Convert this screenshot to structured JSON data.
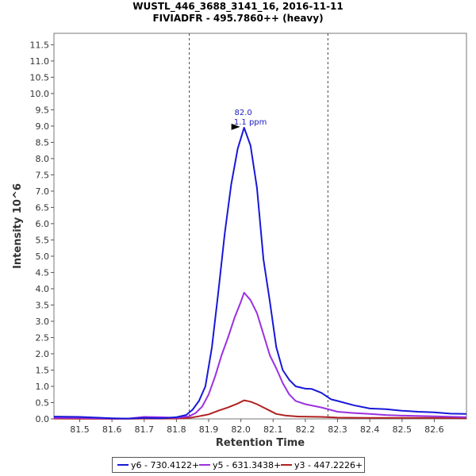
{
  "title": "WUSTL_446_3688_3141_16, 2016-11-11",
  "subtitle": "FIVIADFR - 495.7860++ (heavy)",
  "chart_data": {
    "type": "line",
    "xlabel": "Retention Time",
    "ylabel": "Intensity 10^6",
    "xlim": [
      81.42,
      82.7
    ],
    "ylim": [
      0,
      11.85
    ],
    "x_ticks": [
      "81.5",
      "81.6",
      "81.7",
      "81.8",
      "81.9",
      "82.0",
      "82.1",
      "82.2",
      "82.3",
      "82.4",
      "82.5",
      "82.6"
    ],
    "y_ticks": [
      "0.0",
      "0.5",
      "1.0",
      "1.5",
      "2.0",
      "2.5",
      "3.0",
      "3.5",
      "4.0",
      "4.5",
      "5.0",
      "5.5",
      "6.0",
      "6.5",
      "7.0",
      "7.5",
      "8.0",
      "8.5",
      "9.0",
      "9.5",
      "10.0",
      "10.5",
      "11.0",
      "11.5"
    ],
    "boundaries": [
      81.84,
      82.27
    ],
    "peak_annotation": {
      "x": 82.0,
      "y": 8.95,
      "label_rt": "82.0",
      "label_ppm": "1.1 ppm"
    },
    "legend_position": "bottom",
    "series": [
      {
        "name": "y6 - 730.4122+",
        "color": "#1818d8",
        "points": [
          [
            81.42,
            0.07
          ],
          [
            81.5,
            0.06
          ],
          [
            81.55,
            0.04
          ],
          [
            81.6,
            0.02
          ],
          [
            81.65,
            0.01
          ],
          [
            81.7,
            0.03
          ],
          [
            81.75,
            0.02
          ],
          [
            81.8,
            0.05
          ],
          [
            81.83,
            0.12
          ],
          [
            81.85,
            0.28
          ],
          [
            81.87,
            0.55
          ],
          [
            81.89,
            1.0
          ],
          [
            81.91,
            2.2
          ],
          [
            81.93,
            3.9
          ],
          [
            81.95,
            5.7
          ],
          [
            81.97,
            7.2
          ],
          [
            81.99,
            8.3
          ],
          [
            82.01,
            8.95
          ],
          [
            82.03,
            8.4
          ],
          [
            82.05,
            7.1
          ],
          [
            82.07,
            4.9
          ],
          [
            82.09,
            3.6
          ],
          [
            82.11,
            2.2
          ],
          [
            82.13,
            1.5
          ],
          [
            82.15,
            1.2
          ],
          [
            82.17,
            1.0
          ],
          [
            82.2,
            0.93
          ],
          [
            82.22,
            0.92
          ],
          [
            82.25,
            0.8
          ],
          [
            82.28,
            0.6
          ],
          [
            82.3,
            0.55
          ],
          [
            82.35,
            0.42
          ],
          [
            82.4,
            0.32
          ],
          [
            82.45,
            0.3
          ],
          [
            82.5,
            0.25
          ],
          [
            82.55,
            0.22
          ],
          [
            82.6,
            0.2
          ],
          [
            82.65,
            0.16
          ],
          [
            82.7,
            0.15
          ]
        ]
      },
      {
        "name": "y5 - 631.3438+",
        "color": "#9b30e0",
        "points": [
          [
            81.42,
            0.03
          ],
          [
            81.5,
            0.03
          ],
          [
            81.6,
            0.01
          ],
          [
            81.65,
            0.01
          ],
          [
            81.7,
            0.06
          ],
          [
            81.75,
            0.05
          ],
          [
            81.8,
            0.03
          ],
          [
            81.84,
            0.08
          ],
          [
            81.86,
            0.18
          ],
          [
            81.88,
            0.38
          ],
          [
            81.9,
            0.75
          ],
          [
            81.92,
            1.3
          ],
          [
            81.94,
            1.95
          ],
          [
            81.96,
            2.5
          ],
          [
            81.98,
            3.1
          ],
          [
            82.0,
            3.6
          ],
          [
            82.01,
            3.88
          ],
          [
            82.03,
            3.65
          ],
          [
            82.05,
            3.25
          ],
          [
            82.07,
            2.6
          ],
          [
            82.09,
            1.95
          ],
          [
            82.11,
            1.55
          ],
          [
            82.13,
            1.1
          ],
          [
            82.15,
            0.75
          ],
          [
            82.17,
            0.55
          ],
          [
            82.2,
            0.45
          ],
          [
            82.25,
            0.35
          ],
          [
            82.3,
            0.22
          ],
          [
            82.35,
            0.18
          ],
          [
            82.4,
            0.15
          ],
          [
            82.45,
            0.12
          ],
          [
            82.5,
            0.1
          ],
          [
            82.6,
            0.08
          ],
          [
            82.7,
            0.05
          ]
        ]
      },
      {
        "name": "y3 - 447.2226+",
        "color": "#b02020",
        "points": [
          [
            81.42,
            0.01
          ],
          [
            81.6,
            0.0
          ],
          [
            81.7,
            0.01
          ],
          [
            81.8,
            0.01
          ],
          [
            81.84,
            0.03
          ],
          [
            81.87,
            0.08
          ],
          [
            81.9,
            0.14
          ],
          [
            81.93,
            0.25
          ],
          [
            81.96,
            0.35
          ],
          [
            81.99,
            0.47
          ],
          [
            82.01,
            0.57
          ],
          [
            82.03,
            0.53
          ],
          [
            82.05,
            0.45
          ],
          [
            82.07,
            0.35
          ],
          [
            82.09,
            0.25
          ],
          [
            82.11,
            0.15
          ],
          [
            82.14,
            0.1
          ],
          [
            82.18,
            0.07
          ],
          [
            82.25,
            0.06
          ],
          [
            82.3,
            0.04
          ],
          [
            82.4,
            0.03
          ],
          [
            82.5,
            0.03
          ],
          [
            82.6,
            0.03
          ],
          [
            82.7,
            0.02
          ]
        ]
      }
    ]
  }
}
